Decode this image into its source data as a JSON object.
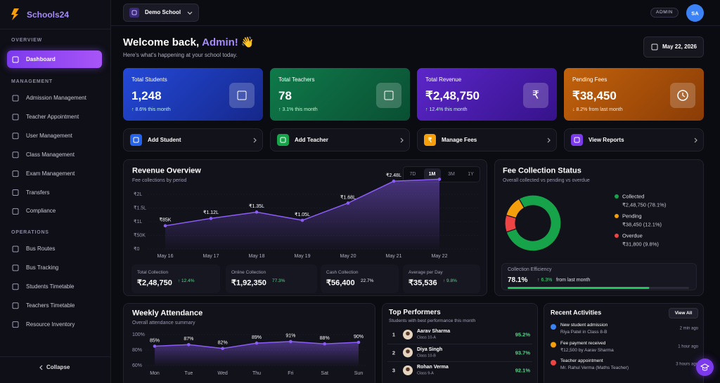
{
  "sidebar": {
    "brand": "Schools24",
    "sections": [
      {
        "title": "OVERVIEW",
        "items": [
          "Dashboard"
        ]
      },
      {
        "title": "MANAGEMENT",
        "items": [
          "Admission Management",
          "Teacher Appointment",
          "User Management",
          "Class Management",
          "Exam Management",
          "Transfers",
          "Compliance"
        ]
      },
      {
        "title": "OPERATIONS",
        "items": [
          "Bus Routes",
          "Bus Tracking",
          "Students Timetable",
          "Teachers Timetable",
          "Resource Inventory"
        ]
      }
    ],
    "collapse": "Collapse"
  },
  "topbar": {
    "school": "Demo School",
    "role": "ADMIN",
    "avatar": "SA"
  },
  "header": {
    "greeting": "Welcome back,",
    "name": "Admin!",
    "emoji": "👋",
    "subtitle": "Here's what's happening at your school today.",
    "date": "May 22, 2026"
  },
  "stats": [
    {
      "title": "Total Students",
      "value": "1,248",
      "change": "↑ 8.6% this month"
    },
    {
      "title": "Total Teachers",
      "value": "78",
      "change": "↑ 3.1% this month"
    },
    {
      "title": "Total Revenue",
      "value": "₹2,48,750",
      "change": "↑ 12.4% this month",
      "icon": "₹"
    },
    {
      "title": "Pending Fees",
      "value": "₹38,450",
      "change": "↓ 8.2% from last month"
    }
  ],
  "actions": [
    {
      "label": "Add Student"
    },
    {
      "label": "Add Teacher"
    },
    {
      "label": "Manage Fees",
      "icon": "₹"
    },
    {
      "label": "View Reports"
    }
  ],
  "revenue": {
    "title": "Revenue Overview",
    "subtitle": "Fee collections by period",
    "periods": [
      "7D",
      "1M",
      "3M",
      "1Y"
    ],
    "chart_data": {
      "type": "line",
      "categories": [
        "May 16",
        "May 17",
        "May 18",
        "May 19",
        "May 20",
        "May 21",
        "May 22"
      ],
      "values": [
        85000,
        112000,
        135000,
        105000,
        168000,
        248000,
        255000
      ],
      "value_labels": [
        "₹85K",
        "₹1.12L",
        "₹1.35L",
        "₹1.05L",
        "₹1.68L",
        "₹2.48L",
        null
      ],
      "ylim": [
        0,
        260000
      ],
      "yticks": [
        {
          "value": 0,
          "label": "₹0"
        },
        {
          "value": 50000,
          "label": "₹50K"
        },
        {
          "value": 100000,
          "label": "₹1L"
        },
        {
          "value": 150000,
          "label": "₹1.5L"
        },
        {
          "value": 200000,
          "label": "₹2L"
        }
      ],
      "color": "#8b5cf6",
      "grid": true
    },
    "summary": [
      {
        "label": "Total Collection",
        "value": "₹2,48,750",
        "change": "↑ 12.4%"
      },
      {
        "label": "Online Collection",
        "value": "₹1,92,350",
        "change": "77.3%"
      },
      {
        "label": "Cash Collection",
        "value": "₹56,400",
        "change": "22.7%"
      },
      {
        "label": "Average per Day",
        "value": "₹35,536",
        "change": "↑ 9.8%"
      }
    ]
  },
  "fee": {
    "title": "Fee Collection Status",
    "subtitle": "Overall collected vs pending vs overdue",
    "chart_data": {
      "type": "pie",
      "donut": true,
      "categories": [
        "Collected",
        "Pending",
        "Overdue"
      ],
      "values": [
        78.1,
        12.1,
        9.8
      ],
      "value_labels": [
        "₹2,48,750 (78.1%)",
        "₹38,450 (12.1%)",
        "₹31,800 (9.8%)"
      ],
      "colors": [
        "#16a34a",
        "#f59e0b",
        "#ef4444"
      ]
    },
    "efficiency": {
      "label": "Collection Efficiency",
      "value": 78.1,
      "value_label": "78.1%",
      "change": "↑ 6.3%",
      "note": "from last month"
    }
  },
  "attendance": {
    "title": "Weekly Attendance",
    "subtitle": "Overall attendance summary",
    "chart_data": {
      "type": "line",
      "categories": [
        "Mon",
        "Tue",
        "Wed",
        "Thu",
        "Fri",
        "Sat",
        "Sun"
      ],
      "values": [
        85,
        87,
        82,
        89,
        91,
        88,
        90
      ],
      "value_labels": [
        "85%",
        "87%",
        "82%",
        "89%",
        "91%",
        "88%",
        "90%"
      ],
      "ylim": [
        60,
        100
      ],
      "yticks": [
        {
          "value": 60,
          "label": "60%"
        },
        {
          "value": 80,
          "label": "80%"
        },
        {
          "value": 100,
          "label": "100%"
        }
      ],
      "color": "#8b5cf6",
      "grid": true
    }
  },
  "performers": {
    "title": "Top Performers",
    "subtitle": "Students with best performance this month",
    "rows": [
      {
        "rank": 1,
        "name": "Aarav Sharma",
        "class": "Class 10-A",
        "score": "95.2%"
      },
      {
        "rank": 2,
        "name": "Diya Singh",
        "class": "Class 10-B",
        "score": "93.7%"
      },
      {
        "rank": 3,
        "name": "Rohan Verma",
        "class": "Class 9-A",
        "score": "92.1%"
      }
    ]
  },
  "activities": {
    "title": "Recent Activities",
    "action": "View All",
    "items": [
      {
        "title": "New student admission",
        "detail": "Riya Patel in Class 8-B",
        "time": "2 min ago"
      },
      {
        "title": "Fee payment received",
        "detail": "₹12,500 by Aarav Sharma",
        "time": "1 hour ago"
      },
      {
        "title": "Teacher appointment",
        "detail": "Mr. Rahul Verma (Maths Teacher)",
        "time": "3 hours ago"
      }
    ]
  }
}
